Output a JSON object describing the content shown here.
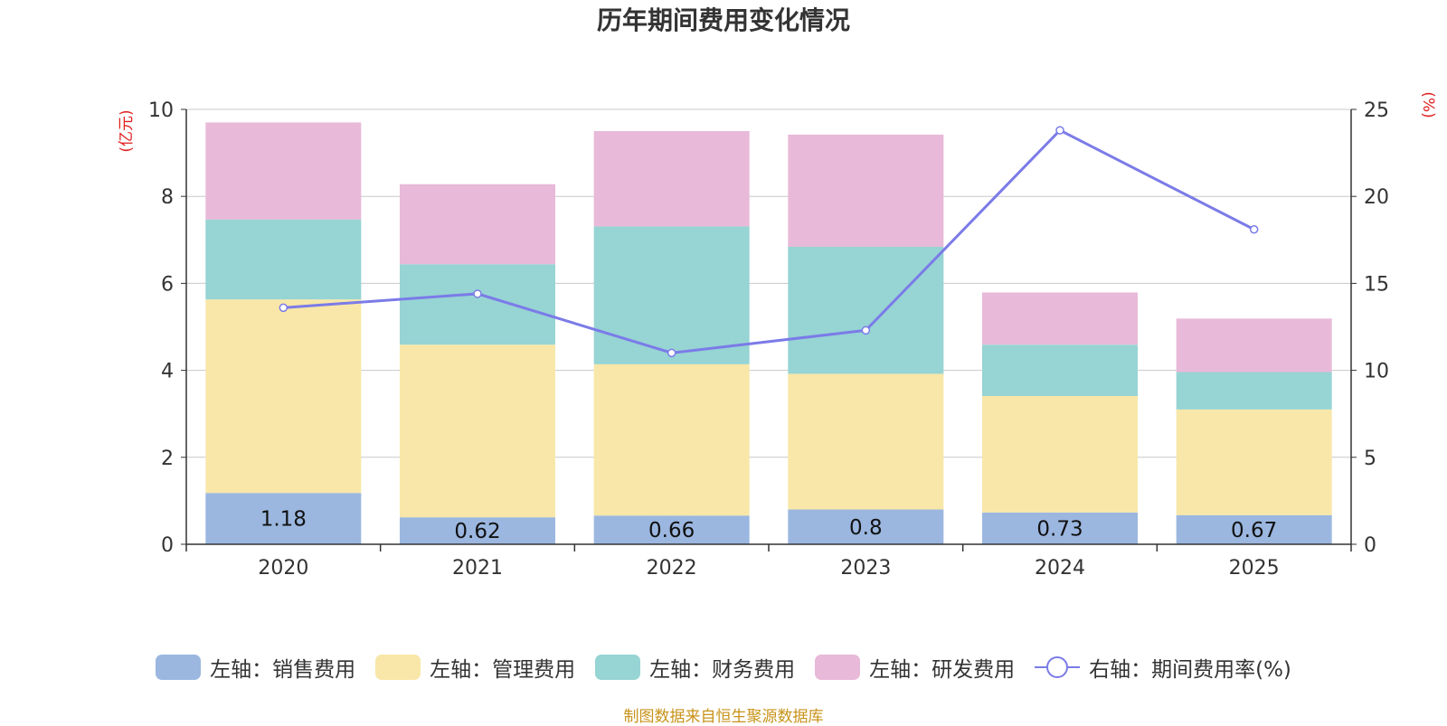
{
  "chart_data": {
    "type": "bar",
    "stacked": true,
    "title": "历年期间费用变化情况",
    "categories": [
      "2020",
      "2021",
      "2022",
      "2023",
      "2024",
      "2025"
    ],
    "y_left": {
      "label": "(亿元)",
      "ylim": [
        0,
        10
      ],
      "ticks": [
        "0",
        "2",
        "4",
        "6",
        "8",
        "10"
      ]
    },
    "y_right": {
      "label": "(%)",
      "ylim": [
        0,
        25
      ],
      "ticks": [
        "0",
        "5",
        "10",
        "15",
        "20",
        "25"
      ]
    },
    "series": [
      {
        "name": "左轴：销售费用",
        "axis": "left",
        "color": "#9bb7e0",
        "values": [
          1.18,
          0.62,
          0.66,
          0.8,
          0.73,
          0.67
        ],
        "labels": [
          "1.18",
          "0.62",
          "0.66",
          "0.8",
          "0.73",
          "0.67"
        ]
      },
      {
        "name": "左轴：管理费用",
        "axis": "left",
        "color": "#f8e7a8",
        "values": [
          4.45,
          3.97,
          3.48,
          3.12,
          2.68,
          2.43
        ]
      },
      {
        "name": "左轴：财务费用",
        "axis": "left",
        "color": "#97d4d4",
        "values": [
          1.84,
          1.85,
          3.17,
          2.92,
          1.18,
          0.86
        ]
      },
      {
        "name": "左轴：研发费用",
        "axis": "left",
        "color": "#e8b9d8",
        "values": [
          2.23,
          1.84,
          2.19,
          2.58,
          1.2,
          1.23
        ]
      },
      {
        "name": "右轴：期间费用率(%)",
        "axis": "right",
        "type": "line",
        "color": "#7b7be8",
        "values": [
          13.6,
          14.4,
          11.0,
          12.3,
          23.8,
          18.1
        ]
      }
    ],
    "legend_position": "bottom",
    "grid": true
  },
  "source_note": "制图数据来自恒生聚源数据库"
}
